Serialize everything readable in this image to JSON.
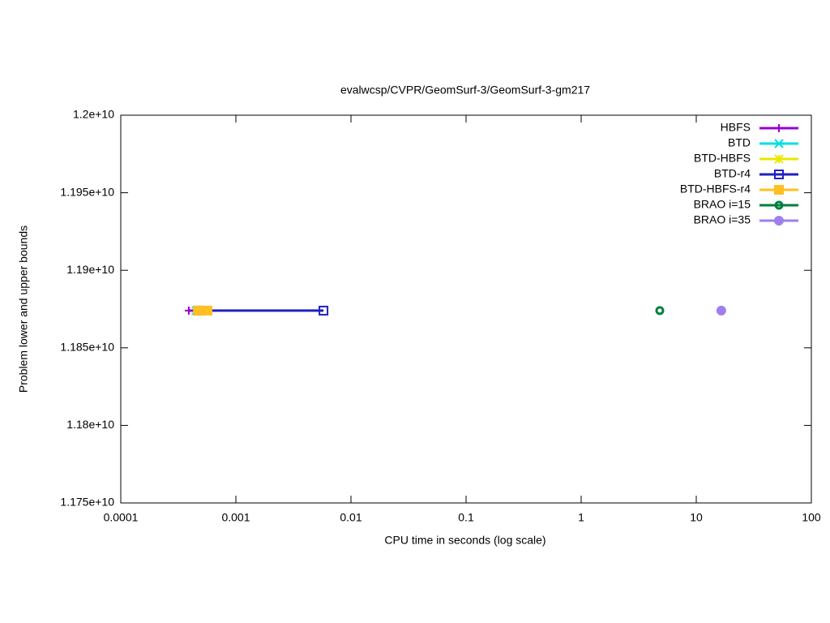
{
  "chart_data": {
    "type": "line",
    "title": "evalwcsp/CVPR/GeomSurf-3/GeomSurf-3-gm217",
    "xlabel": "CPU time in seconds (log scale)",
    "ylabel": "Problem lower and upper bounds",
    "xscale": "log",
    "xlim": [
      0.0001,
      100
    ],
    "xticks": [
      0.0001,
      0.001,
      0.01,
      0.1,
      1,
      10,
      100
    ],
    "ylim": [
      11750000000,
      12000000000
    ],
    "yticks": [
      {
        "value": 11750000000,
        "label": "1.175e+10"
      },
      {
        "value": 11800000000,
        "label": "1.18e+10"
      },
      {
        "value": 11850000000,
        "label": "1.185e+10"
      },
      {
        "value": 11900000000,
        "label": "1.19e+10"
      },
      {
        "value": 11950000000,
        "label": "1.195e+10"
      },
      {
        "value": 12000000000,
        "label": "1.2e+10"
      }
    ],
    "grid": false,
    "legend": "top-right",
    "series": [
      {
        "name": "HBFS",
        "color": "#9400d3",
        "marker": "plus",
        "x": [
          0.00039,
          0.00044
        ],
        "values": [
          11874000000,
          11874000000
        ]
      },
      {
        "name": "BTD",
        "color": "#00e0e0",
        "marker": "cross",
        "x": [
          0.00045
        ],
        "values": [
          11874000000
        ]
      },
      {
        "name": "BTD-HBFS",
        "color": "#e8e800",
        "marker": "star",
        "x": [
          0.00046
        ],
        "values": [
          11874000000
        ]
      },
      {
        "name": "BTD-r4",
        "color": "#2020c0",
        "marker": "open-square",
        "x": [
          0.00047,
          0.00577
        ],
        "values": [
          11874000000,
          11874000000
        ]
      },
      {
        "name": "BTD-HBFS-r4",
        "color": "#ffc020",
        "marker": "filled-square",
        "x": [
          0.00047,
          0.000567
        ],
        "values": [
          11874000000,
          11874000000
        ]
      },
      {
        "name": "BRAO i=15",
        "color": "#007f3f",
        "marker": "open-circle",
        "x": [
          4.82
        ],
        "values": [
          11874000000
        ]
      },
      {
        "name": "BRAO i=35",
        "color": "#9f7fef",
        "marker": "filled-circle",
        "x": [
          16.5
        ],
        "values": [
          11874000000
        ]
      }
    ]
  }
}
